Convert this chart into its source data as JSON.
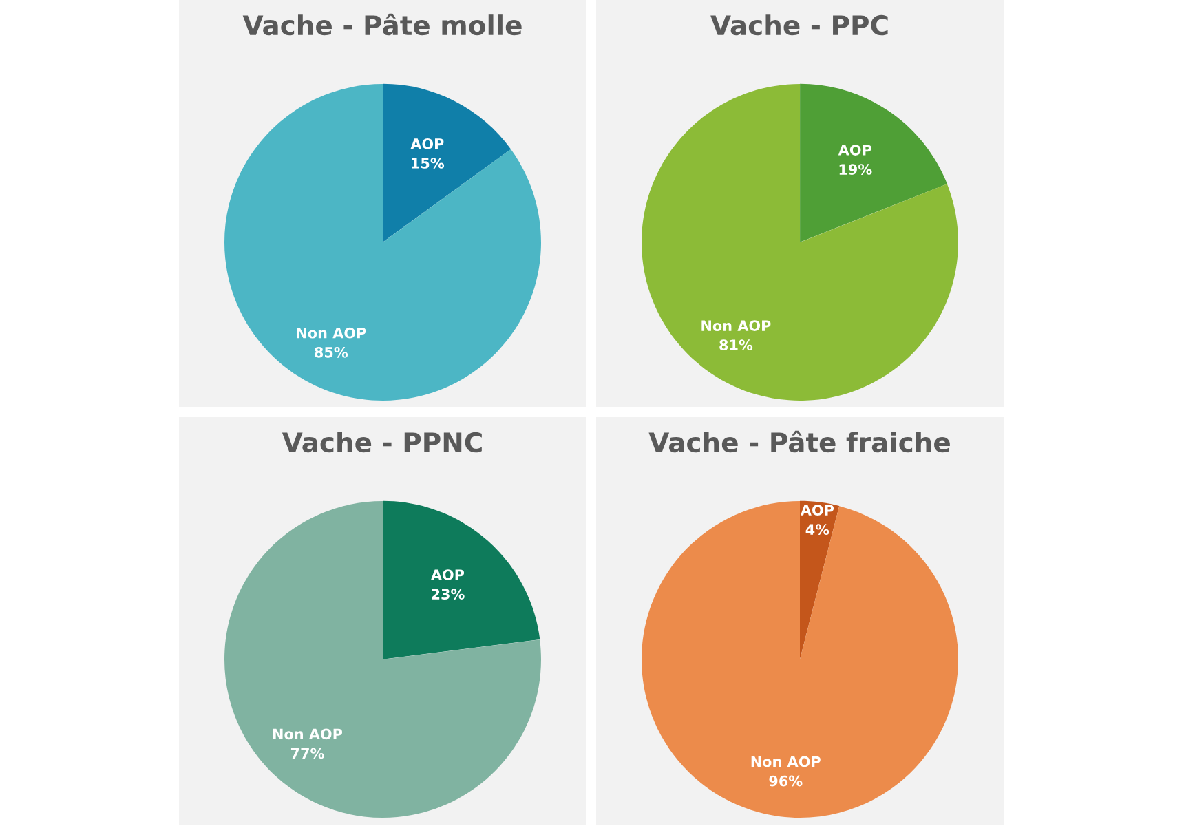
{
  "chart_data": [
    {
      "type": "pie",
      "title": "Vache - Pâte molle",
      "categories": [
        "AOP",
        "Non AOP"
      ],
      "values": [
        15,
        85
      ],
      "value_labels": [
        "15%",
        "85%"
      ],
      "colors": [
        "#107fa9",
        "#4cb6c5"
      ]
    },
    {
      "type": "pie",
      "title": "Vache - PPC",
      "categories": [
        "AOP",
        "Non AOP"
      ],
      "values": [
        19,
        81
      ],
      "value_labels": [
        "19%",
        "81%"
      ],
      "colors": [
        "#4f9f36",
        "#8cbb37"
      ]
    },
    {
      "type": "pie",
      "title": "Vache - PPNC",
      "categories": [
        "AOP",
        "Non AOP"
      ],
      "values": [
        23,
        77
      ],
      "value_labels": [
        "23%",
        "77%"
      ],
      "colors": [
        "#0e7b5b",
        "#80b3a1"
      ]
    },
    {
      "type": "pie",
      "title": "Vache - Pâte fraiche",
      "categories": [
        "AOP",
        "Non AOP"
      ],
      "values": [
        4,
        96
      ],
      "value_labels": [
        "4%",
        "96%"
      ],
      "colors": [
        "#c4561b",
        "#ec8b4b"
      ]
    }
  ]
}
